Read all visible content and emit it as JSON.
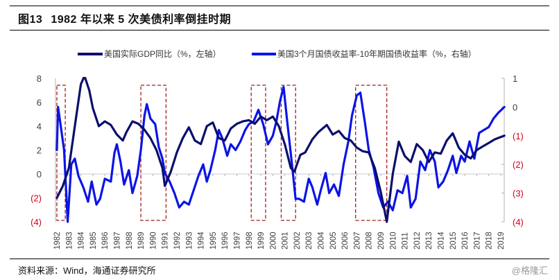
{
  "header": {
    "figure_number": "图13",
    "title": "1982 年以来 5 次美债利率倒挂时期"
  },
  "footer": {
    "source": "资料来源：Wind，海通证券研究所",
    "watermark": "@格隆汇"
  },
  "colors": {
    "gdp_line": "#0a0f6b",
    "spread_line": "#0b14e6",
    "inversion_box": "#a01c1c",
    "negative_tick": "#d0021b",
    "zero_line": "#c8c8d8"
  },
  "chart_data": {
    "type": "line",
    "title": "1982 年以来 5 次美债利率倒挂时期",
    "legend_position": "top",
    "legend": [
      "美国实际GDP同比（%，左轴）",
      "美国3个月国债收益率-10年期国债收益率（%，右轴）"
    ],
    "x_tick_labels": [
      "1982",
      "1983",
      "1984",
      "1985",
      "1986",
      "1987",
      "1988",
      "1989",
      "1990",
      "1991",
      "1992",
      "1993",
      "1994",
      "1995",
      "1996",
      "1997",
      "1998",
      "1999",
      "2000",
      "2001",
      "2002",
      "2003",
      "2004",
      "2005",
      "2006",
      "2007",
      "2008",
      "2009",
      "2010",
      "2011",
      "2012",
      "2013",
      "2014",
      "2015",
      "2016",
      "2017",
      "2018",
      "2019"
    ],
    "xlim": [
      1982,
      2019
    ],
    "left_axis": {
      "ylim": [
        -4,
        8
      ],
      "ticks": [
        8,
        6,
        4,
        2,
        0,
        -2,
        -4
      ],
      "tick_labels": [
        "8",
        "6",
        "4",
        "2",
        "0",
        "(2)",
        "(4)"
      ]
    },
    "right_axis": {
      "ylim": [
        -4,
        1
      ],
      "ticks": [
        1,
        0,
        -1,
        -2,
        -3,
        -4
      ],
      "tick_labels": [
        "1",
        "0",
        "(1)",
        "(2)",
        "(3)",
        "(4)"
      ]
    },
    "inversion_periods": [
      {
        "start": 1982.0,
        "end": 1982.7
      },
      {
        "start": 1989.0,
        "end": 1991.1
      },
      {
        "start": 1998.2,
        "end": 1999.4
      },
      {
        "start": 2000.7,
        "end": 2001.9
      },
      {
        "start": 2006.9,
        "end": 2009.5
      }
    ],
    "series": [
      {
        "name": "美国实际GDP同比（%，左轴）",
        "axis": "left",
        "x": [
          1982.0,
          1982.5,
          1983.0,
          1983.5,
          1984.0,
          1984.3,
          1984.7,
          1985.0,
          1985.5,
          1986.0,
          1986.5,
          1987.0,
          1987.5,
          1987.8,
          1988.3,
          1988.8,
          1989.3,
          1989.8,
          1990.3,
          1990.8,
          1991.0,
          1991.5,
          1992.0,
          1992.5,
          1993.0,
          1993.5,
          1994.0,
          1994.5,
          1995.0,
          1995.5,
          1996.0,
          1996.5,
          1997.0,
          1997.5,
          1998.0,
          1998.5,
          1999.0,
          1999.5,
          2000.0,
          2000.5,
          2001.0,
          2001.5,
          2001.8,
          2002.3,
          2002.7,
          2003.3,
          2003.8,
          2004.5,
          2005.0,
          2005.5,
          2006.0,
          2006.5,
          2007.0,
          2007.5,
          2008.0,
          2008.5,
          2009.0,
          2009.5,
          2010.0,
          2010.5,
          2011.0,
          2011.5,
          2012.0,
          2012.5,
          2013.0,
          2013.5,
          2014.0,
          2014.5,
          2015.0,
          2015.5,
          2016.0,
          2016.5,
          2017.0,
          2017.5,
          2018.0,
          2018.5,
          2019.3
        ],
        "values": [
          -2.0,
          -1.0,
          0.5,
          4.0,
          7.5,
          8.2,
          7.0,
          5.5,
          4.0,
          4.4,
          4.1,
          3.3,
          2.8,
          3.5,
          4.4,
          4.2,
          3.7,
          3.0,
          2.0,
          0.5,
          -1.0,
          0.2,
          1.8,
          3.0,
          3.9,
          2.8,
          2.5,
          4.0,
          4.3,
          3.0,
          2.8,
          3.8,
          4.2,
          4.4,
          4.5,
          4.2,
          4.8,
          4.5,
          4.8,
          4.0,
          2.5,
          0.5,
          0.2,
          1.6,
          1.8,
          2.9,
          3.5,
          4.1,
          3.3,
          3.6,
          3.0,
          2.8,
          2.2,
          1.9,
          1.8,
          0.5,
          -1.5,
          -4.0,
          0.0,
          2.7,
          1.5,
          1.0,
          2.5,
          2.0,
          1.0,
          1.8,
          1.7,
          2.8,
          3.4,
          2.2,
          1.6,
          1.3,
          2.0,
          2.3,
          2.6,
          2.9,
          3.2
        ]
      },
      {
        "name": "美国3个月国债收益率-10年期国债收益率（%，右轴）",
        "axis": "right",
        "x": [
          1982.0,
          1982.1,
          1982.3,
          1982.6,
          1982.9,
          1983.2,
          1983.5,
          1983.8,
          1984.2,
          1984.6,
          1984.9,
          1985.3,
          1985.6,
          1986.0,
          1986.5,
          1986.8,
          1987.0,
          1987.3,
          1987.6,
          1988.0,
          1988.3,
          1988.7,
          1989.0,
          1989.3,
          1989.5,
          1989.8,
          1990.2,
          1990.5,
          1990.8,
          1991.0,
          1991.4,
          1991.8,
          1992.2,
          1992.6,
          1993.0,
          1993.4,
          1993.8,
          1994.2,
          1994.5,
          1994.8,
          1995.2,
          1995.5,
          1995.8,
          1996.2,
          1996.5,
          1996.9,
          1997.3,
          1997.7,
          1998.0,
          1998.4,
          1998.8,
          1999.2,
          1999.6,
          2000.0,
          2000.3,
          2000.6,
          2000.9,
          2001.2,
          2001.6,
          2001.9,
          2002.2,
          2002.6,
          2003.0,
          2003.3,
          2003.7,
          2004.0,
          2004.4,
          2004.7,
          2005.1,
          2005.5,
          2005.9,
          2006.3,
          2006.6,
          2007.0,
          2007.3,
          2007.7,
          2008.0,
          2008.4,
          2008.8,
          2009.2,
          2009.6,
          2010.0,
          2010.4,
          2010.8,
          2011.2,
          2011.5,
          2011.9,
          2012.3,
          2012.7,
          2013.1,
          2013.5,
          2013.8,
          2014.2,
          2014.6,
          2015.0,
          2015.3,
          2015.7,
          2016.0,
          2016.4,
          2016.8,
          2017.2,
          2017.6,
          2018.0,
          2018.4,
          2018.8,
          2019.3
        ],
        "values": [
          -1.5,
          0.0,
          -0.6,
          -1.5,
          -4.0,
          -2.0,
          -1.8,
          -2.4,
          -2.8,
          -3.3,
          -2.6,
          -3.4,
          -3.2,
          -2.5,
          -2.6,
          -1.6,
          -1.3,
          -1.9,
          -2.7,
          -2.2,
          -3.0,
          -2.4,
          -1.5,
          -0.3,
          0.1,
          -0.4,
          -0.6,
          -1.4,
          -1.8,
          -2.3,
          -2.6,
          -3.0,
          -3.5,
          -3.3,
          -3.4,
          -2.9,
          -2.4,
          -2.0,
          -2.6,
          -2.2,
          -1.5,
          -0.8,
          -1.1,
          -1.7,
          -1.3,
          -1.5,
          -1.2,
          -0.8,
          -0.6,
          -0.5,
          -0.1,
          -0.6,
          -1.3,
          -1.0,
          -0.5,
          0.2,
          0.7,
          -0.5,
          -2.0,
          -3.2,
          -3.2,
          -3.3,
          -2.5,
          -2.8,
          -3.4,
          -2.9,
          -2.3,
          -3.0,
          -2.7,
          -3.1,
          -2.0,
          -1.2,
          -0.3,
          0.4,
          0.5,
          -0.6,
          -1.5,
          -2.1,
          -3.0,
          -3.5,
          -3.3,
          -3.6,
          -2.9,
          -3.0,
          -2.4,
          -3.5,
          -3.2,
          -1.9,
          -2.2,
          -1.5,
          -1.9,
          -2.8,
          -2.6,
          -2.2,
          -1.7,
          -2.3,
          -1.7,
          -1.9,
          -1.2,
          -1.8,
          -0.9,
          -0.8,
          -0.7,
          -0.4,
          -0.2,
          0.0
        ]
      }
    ]
  }
}
